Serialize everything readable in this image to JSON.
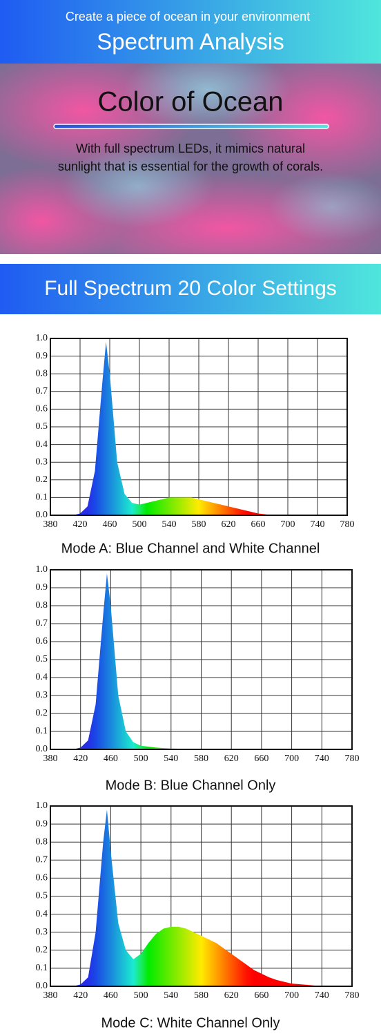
{
  "header": {
    "tagline": "Create a piece of ocean in your environment",
    "title": "Spectrum Analysis"
  },
  "hero": {
    "title": "Color of Ocean",
    "text": [
      "With full spectrum LEDs, it mimics natural",
      "sunlight that is essential for the growth of corals."
    ]
  },
  "section": {
    "title": "Full Spectrum 20 Color Settings"
  },
  "chart_data": [
    {
      "type": "area",
      "title": "Mode A: Blue Channel and White Channel",
      "x": [
        410,
        420,
        430,
        440,
        450,
        455,
        460,
        470,
        480,
        490,
        500,
        510,
        520,
        530,
        540,
        550,
        560,
        570,
        580,
        590,
        600,
        610,
        620,
        630,
        640,
        650,
        660,
        670,
        680
      ],
      "values": [
        0,
        0.01,
        0.05,
        0.25,
        0.75,
        0.98,
        0.8,
        0.3,
        0.12,
        0.07,
        0.06,
        0.07,
        0.08,
        0.09,
        0.1,
        0.1,
        0.1,
        0.1,
        0.09,
        0.08,
        0.07,
        0.06,
        0.05,
        0.04,
        0.03,
        0.02,
        0.01,
        0.005,
        0
      ],
      "xlim": [
        380,
        780
      ],
      "ylim": [
        0,
        1
      ],
      "xticks": [
        380,
        420,
        460,
        500,
        540,
        580,
        620,
        660,
        700,
        740,
        780
      ],
      "yticks": [
        {
          "value": 0,
          "label": "0.0"
        },
        0.1,
        0.2,
        0.3,
        0.4,
        0.5,
        0.6,
        0.7,
        0.8,
        0.9,
        {
          "value": 1,
          "label": "1.0"
        }
      ],
      "grid": true
    },
    {
      "type": "area",
      "title": "Mode B: Blue Channel Only",
      "x": [
        410,
        420,
        430,
        440,
        450,
        455,
        460,
        470,
        480,
        490,
        500,
        520,
        540,
        560,
        580
      ],
      "values": [
        0,
        0.01,
        0.05,
        0.25,
        0.75,
        0.98,
        0.8,
        0.3,
        0.1,
        0.04,
        0.02,
        0.01,
        0.005,
        0.003,
        0
      ],
      "xlim": [
        380,
        780
      ],
      "ylim": [
        0,
        1
      ],
      "xticks": [
        380,
        420,
        460,
        500,
        540,
        580,
        620,
        660,
        700,
        740,
        780
      ],
      "yticks": [
        {
          "value": 0,
          "label": "0.0"
        },
        0.1,
        0.2,
        0.3,
        0.4,
        0.5,
        0.6,
        0.7,
        0.8,
        0.9,
        {
          "value": 1,
          "label": "1.0"
        }
      ],
      "grid": true
    },
    {
      "type": "area",
      "title": "Mode C: White Channel Only",
      "x": [
        410,
        420,
        430,
        440,
        450,
        455,
        460,
        470,
        480,
        490,
        500,
        510,
        520,
        530,
        540,
        550,
        560,
        570,
        580,
        590,
        600,
        610,
        620,
        630,
        640,
        650,
        660,
        670,
        680,
        690,
        700,
        720,
        740
      ],
      "values": [
        0,
        0.01,
        0.05,
        0.3,
        0.8,
        0.98,
        0.75,
        0.35,
        0.2,
        0.15,
        0.18,
        0.24,
        0.29,
        0.32,
        0.33,
        0.33,
        0.32,
        0.3,
        0.28,
        0.26,
        0.24,
        0.21,
        0.18,
        0.15,
        0.12,
        0.09,
        0.07,
        0.05,
        0.035,
        0.025,
        0.015,
        0.008,
        0
      ],
      "xlim": [
        380,
        780
      ],
      "ylim": [
        0,
        1
      ],
      "xticks": [
        380,
        420,
        460,
        500,
        540,
        580,
        620,
        660,
        700,
        740,
        780
      ],
      "yticks": [
        {
          "value": 0,
          "label": "0.0"
        },
        0.1,
        0.2,
        0.3,
        0.4,
        0.5,
        0.6,
        0.7,
        0.8,
        0.9,
        {
          "value": 1,
          "label": "1.0"
        }
      ],
      "grid": true
    }
  ]
}
